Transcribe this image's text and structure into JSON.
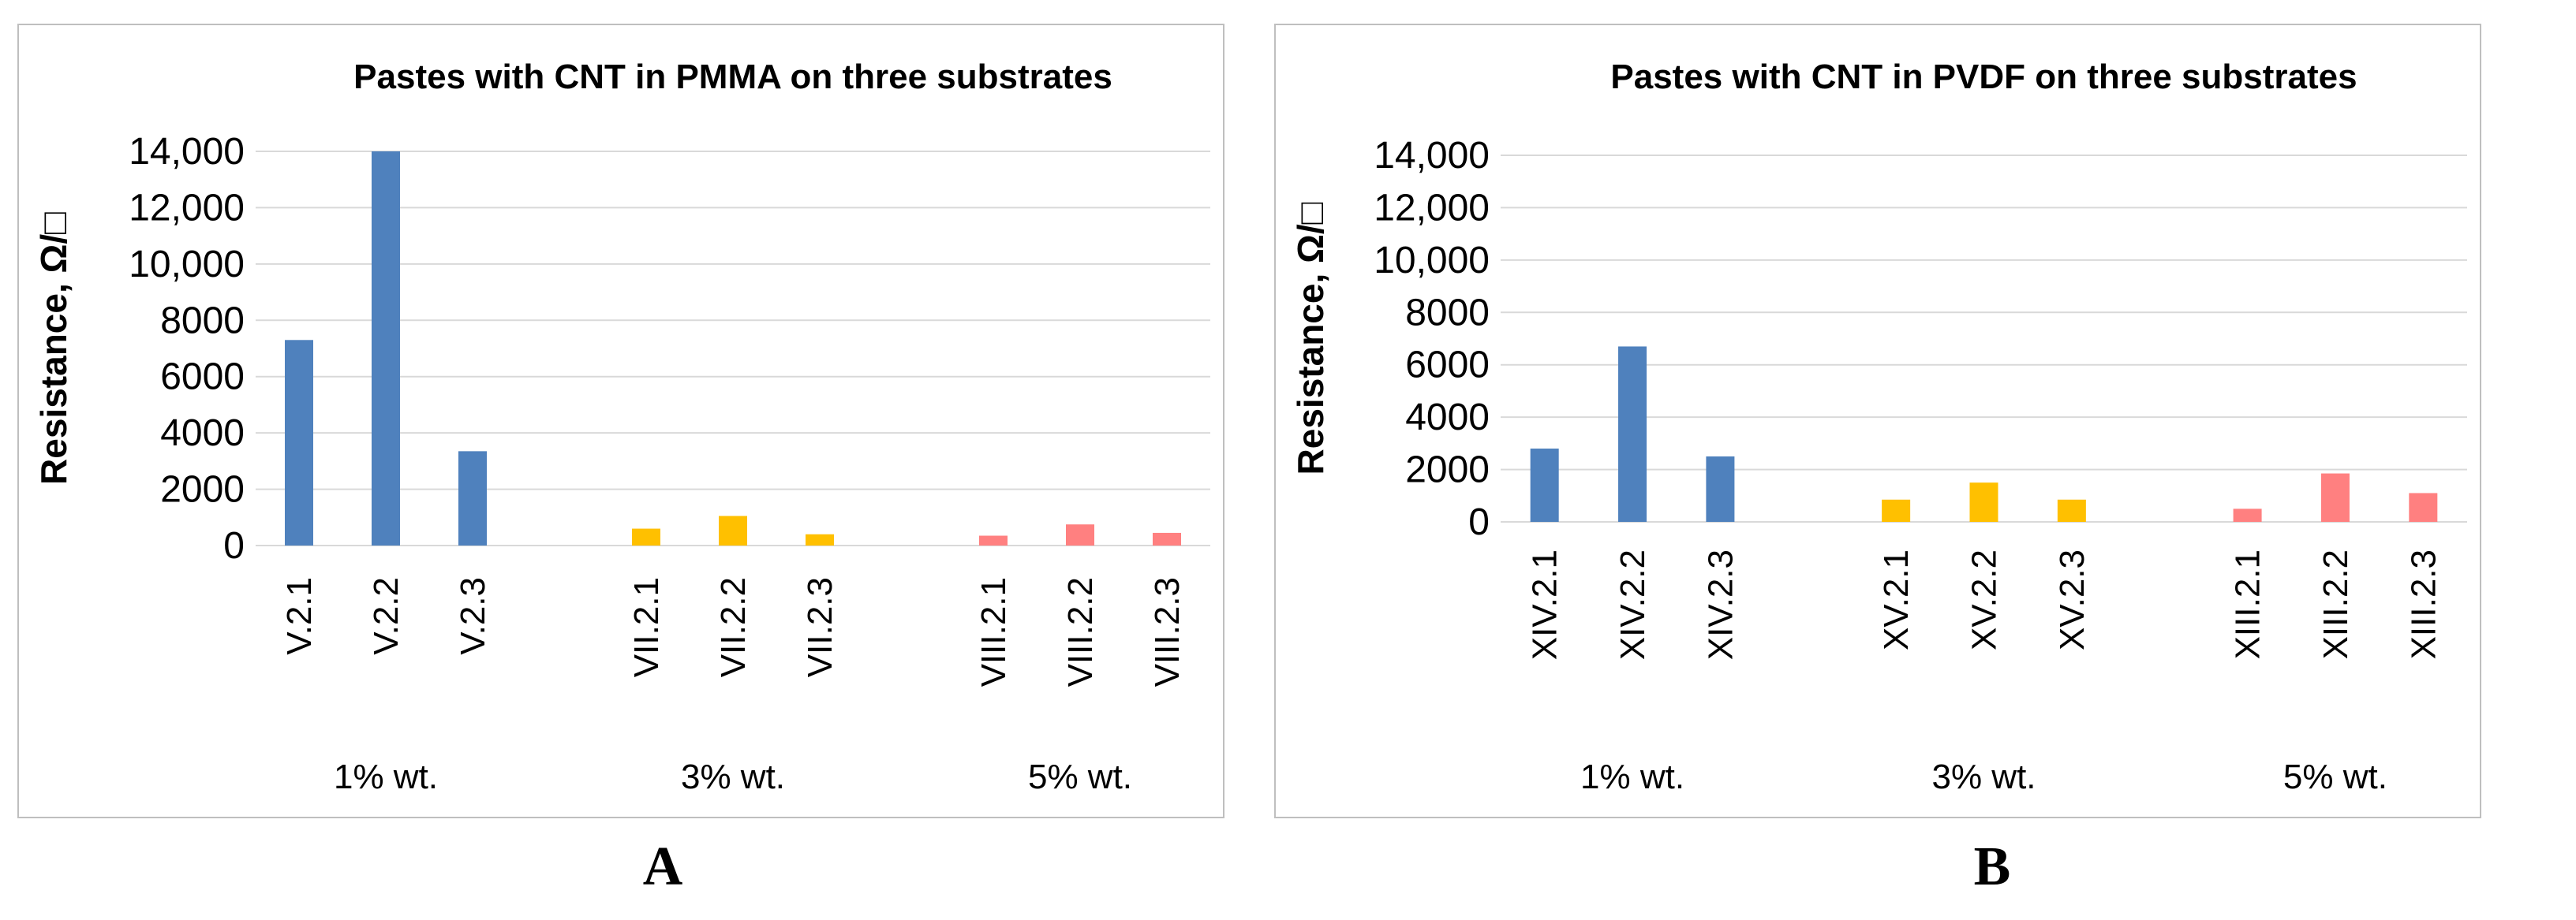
{
  "chart_data": [
    {
      "id": "A",
      "type": "bar",
      "title": "Pastes with CNT in PMMA on three substrates",
      "ylabel": "Resistance, Ω/□",
      "ylim": [
        0,
        14000
      ],
      "yticks": [
        "0",
        "2000",
        "4000",
        "6000",
        "8000",
        "10,000",
        "12,000",
        "14,000"
      ],
      "grid": true,
      "groups": [
        {
          "label": "1% wt.",
          "color": "#4f81bd",
          "categories": [
            "V.2.1",
            "V.2.2",
            "V.2.3"
          ],
          "values": [
            7300,
            14000,
            3350
          ]
        },
        {
          "label": "3% wt.",
          "color": "#ffc000",
          "categories": [
            "VII.2.1",
            "VII.2.2",
            "VII.2.3"
          ],
          "values": [
            600,
            1050,
            400
          ]
        },
        {
          "label": "5% wt.",
          "color": "#ff8080",
          "categories": [
            "VIII.2.1",
            "VIII.2.2",
            "VIII.2.3"
          ],
          "values": [
            350,
            750,
            450
          ]
        }
      ]
    },
    {
      "id": "B",
      "type": "bar",
      "title": "Pastes with CNT in PVDF on three substrates",
      "ylabel": "Resistance, Ω/□",
      "ylim": [
        0,
        14000
      ],
      "yticks": [
        "0",
        "2000",
        "4000",
        "6000",
        "8000",
        "10,000",
        "12,000",
        "14,000"
      ],
      "grid": true,
      "groups": [
        {
          "label": "1% wt.",
          "color": "#4f81bd",
          "categories": [
            "XIV.2.1",
            "XIV.2.2",
            "XIV.2.3"
          ],
          "values": [
            2800,
            6700,
            2500
          ]
        },
        {
          "label": "3% wt.",
          "color": "#ffc000",
          "categories": [
            "XV.2.1",
            "XV.2.2",
            "XV.2.3"
          ],
          "values": [
            850,
            1500,
            850
          ]
        },
        {
          "label": "5% wt.",
          "color": "#ff8080",
          "categories": [
            "XIII.2.1",
            "XIII.2.2",
            "XIII.2.3"
          ],
          "values": [
            500,
            1850,
            1100
          ]
        }
      ]
    }
  ],
  "panel_labels": [
    "A",
    "B"
  ]
}
